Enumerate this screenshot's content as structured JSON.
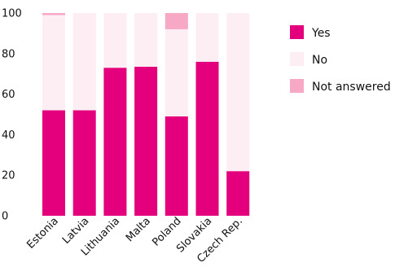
{
  "chart_data": {
    "type": "bar",
    "stacked": true,
    "categories": [
      "Estonia",
      "Latvia",
      "Lithuania",
      "Malta",
      "Poland",
      "Slovakia",
      "Czech Rep."
    ],
    "series": [
      {
        "name": "Yes",
        "color": "#e4007c",
        "values": [
          52,
          52,
          73,
          73.5,
          49,
          76,
          22
        ]
      },
      {
        "name": "No",
        "color": "#fdeef3",
        "values": [
          47,
          48,
          27,
          26.5,
          43,
          24,
          78
        ]
      },
      {
        "name": "Not answered",
        "color": "#f7a8c4",
        "values": [
          1,
          0,
          0,
          0,
          8,
          0,
          0
        ]
      }
    ],
    "yticks": [
      0,
      20,
      40,
      60,
      80,
      100
    ],
    "ylim": [
      0,
      100
    ],
    "grid": false,
    "legend": "right"
  }
}
